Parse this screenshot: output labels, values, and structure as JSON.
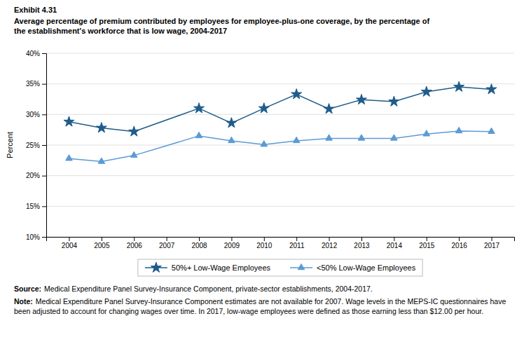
{
  "chart_data": {
    "type": "line",
    "title": "Average percentage of premium contributed by employees for employee-plus-one coverage, by the percentage of\nthe establishment's workforce that is low wage, 2004-2017",
    "y_label": "Percent",
    "x": [
      2004,
      2005,
      2006,
      2007,
      2008,
      2009,
      2010,
      2011,
      2012,
      2013,
      2014,
      2015,
      2016,
      2017
    ],
    "xlim": [
      2003.3,
      2017.7
    ],
    "xticks": [
      2004,
      2005,
      2006,
      2007,
      2008,
      2009,
      2010,
      2011,
      2012,
      2013,
      2014,
      2015,
      2016,
      2017
    ],
    "ylim": [
      10,
      40
    ],
    "yticks": [
      {
        "value": 10,
        "label": "10%"
      },
      {
        "value": 15,
        "label": "15%"
      },
      {
        "value": 20,
        "label": "20%"
      },
      {
        "value": 25,
        "label": "25%"
      },
      {
        "value": 30,
        "label": "30%"
      },
      {
        "value": 35,
        "label": "35%"
      },
      {
        "value": 40,
        "label": "40%"
      }
    ],
    "grid": true,
    "legend": "bottom",
    "series": [
      {
        "name": "50%+ Low-Wage Employees",
        "color": "#1F5C8B",
        "marker": "star",
        "line_style": "solid",
        "values": [
          28.8,
          27.8,
          27.2,
          null,
          31.0,
          28.6,
          31.0,
          33.3,
          30.9,
          32.4,
          32.1,
          33.7,
          34.5,
          34.1
        ]
      },
      {
        "name": "<50% Low-Wage Employees",
        "color": "#5B9BD5",
        "marker": "triangle",
        "line_style": "solid",
        "values": [
          22.8,
          22.3,
          23.3,
          null,
          26.5,
          25.7,
          25.1,
          25.7,
          26.1,
          26.1,
          26.1,
          26.8,
          27.3,
          27.2
        ]
      }
    ],
    "annotations": [
      {
        "label": "Exhibit 4.31"
      },
      {
        "label": "Source:",
        "text": "Medical Expenditure Panel Survey-Insurance Component, private-sector establishments, 2004-2017."
      },
      {
        "label": "Note:",
        "text": "Medical Expenditure Panel Survey-Insurance Component estimates are not available for 2007. Wage levels in the MEPS-IC questionnaires have been adjusted to account for changing wages over time.  In 2017, low-wage employees were defined as those earning less than $12.00 per hour."
      }
    ]
  }
}
